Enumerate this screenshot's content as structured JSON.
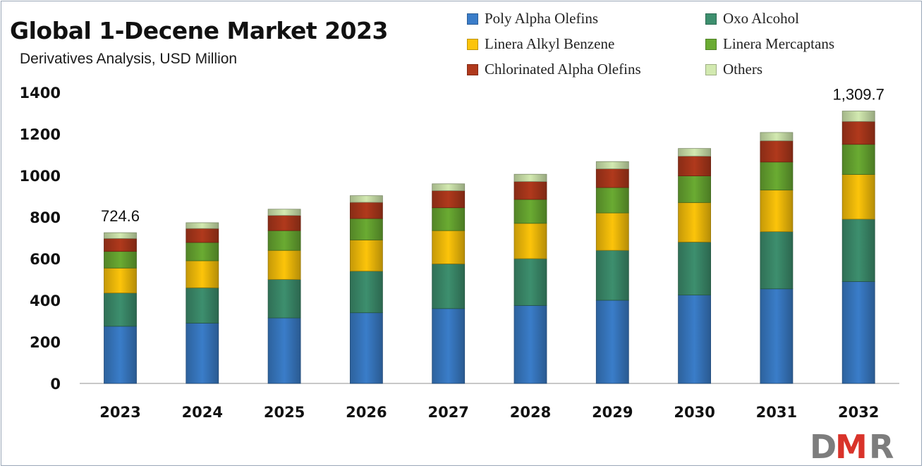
{
  "chart_data": {
    "type": "bar",
    "stacked": true,
    "title": "Global 1-Decene Market 2023",
    "subtitle": "Derivatives  Analysis, USD Million",
    "xlabel": "",
    "ylabel": "",
    "ylim": [
      0,
      1400
    ],
    "yticks": [
      "0",
      "200",
      "400",
      "600",
      "800",
      "1000",
      "1200",
      "1400"
    ],
    "categories": [
      "2023",
      "2024",
      "2025",
      "2026",
      "2027",
      "2028",
      "2029",
      "2030",
      "2031",
      "2032"
    ],
    "series": [
      {
        "name": "Poly Alpha Olefins",
        "color": "#3a7dc9",
        "values": [
          275,
          290,
          315,
          340,
          360,
          375,
          400,
          425,
          455,
          490
        ]
      },
      {
        "name": "Oxo Alcohol",
        "color": "#3d8f6e",
        "values": [
          160,
          170,
          185,
          200,
          215,
          225,
          240,
          255,
          275,
          300
        ]
      },
      {
        "name": "Linera Alkyl Benzene",
        "color": "#fcc40a",
        "values": [
          120,
          130,
          140,
          150,
          160,
          170,
          180,
          190,
          200,
          215
        ]
      },
      {
        "name": "Linera Mercaptans",
        "color": "#6aab32",
        "values": [
          80,
          88,
          95,
          103,
          110,
          115,
          122,
          128,
          135,
          145
        ]
      },
      {
        "name": "Chlorinated Alpha Olefins",
        "color": "#b0391c",
        "values": [
          62,
          67,
          73,
          78,
          82,
          86,
          90,
          95,
          102,
          110
        ]
      },
      {
        "name": "Others",
        "color": "#d2e9b0",
        "values": [
          28,
          28,
          30,
          32,
          33,
          35,
          35,
          37,
          40,
          50
        ]
      }
    ],
    "data_labels": [
      {
        "category": "2023",
        "text": "724.6"
      },
      {
        "category": "2032",
        "text": "1,309.7"
      }
    ],
    "legend_position": "top-right",
    "grid": false
  },
  "logo": {
    "text": "DMR"
  }
}
